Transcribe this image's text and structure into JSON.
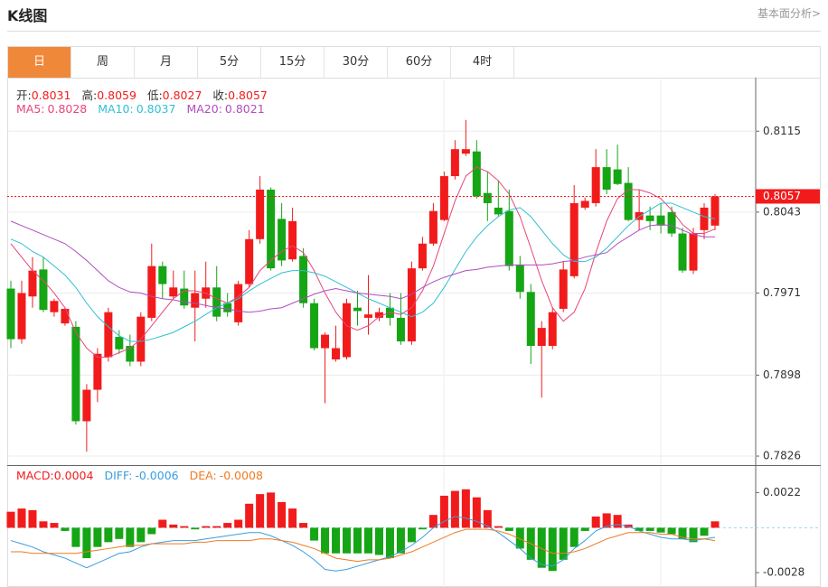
{
  "header": {
    "title": "K线图",
    "link": "基本面分析>"
  },
  "tabs": {
    "items": [
      "日",
      "周",
      "月",
      "5分",
      "15分",
      "30分",
      "60分",
      "4时"
    ],
    "active": 0
  },
  "chart_data": [
    {
      "type": "candlestick",
      "up_color": "#f21b1b",
      "down_color": "#15a515",
      "ylim": [
        0.7818,
        0.8161
      ],
      "yticks": [
        0.8115,
        0.8043,
        0.7971,
        0.7898,
        0.7826
      ],
      "grid": true,
      "last_price": 0.8057,
      "last_price_color": "#f21b1b",
      "info": [
        {
          "label": "开:",
          "value": 0.8031
        },
        {
          "label": "高:",
          "value": 0.8059
        },
        {
          "label": "低:",
          "value": 0.8027
        },
        {
          "label": "收:",
          "value": 0.8057
        }
      ],
      "open": [
        0.7975,
        0.793,
        0.7968,
        0.7992,
        0.7954,
        0.7944,
        0.7941,
        0.7857,
        0.7885,
        0.7914,
        0.7932,
        0.7924,
        0.791,
        0.7949,
        0.7995,
        0.7968,
        0.7975,
        0.7958,
        0.7966,
        0.7976,
        0.7962,
        0.7945,
        0.7979,
        0.8019,
        0.8063,
        0.8037,
        0.8001,
        0.8004,
        0.7962,
        0.7922,
        0.7912,
        0.7914,
        0.7958,
        0.7949,
        0.7949,
        0.7958,
        0.7949,
        0.7928,
        0.7993,
        0.8015,
        0.8036,
        0.8075,
        0.8095,
        0.8097,
        0.806,
        0.8047,
        0.8044,
        0.7996,
        0.7972,
        0.7924,
        0.7924,
        0.7957,
        0.7986,
        0.8047,
        0.8051,
        0.8083,
        0.8081,
        0.8069,
        0.8036,
        0.804,
        0.804,
        0.8043,
        0.8024,
        0.7991,
        0.8027,
        0.8031
      ],
      "high": [
        0.7982,
        0.7982,
        0.8003,
        0.8003,
        0.7966,
        0.7958,
        0.7946,
        0.789,
        0.7922,
        0.7958,
        0.7938,
        0.7934,
        0.7954,
        0.8015,
        0.7999,
        0.7991,
        0.7991,
        0.7991,
        0.7999,
        0.7995,
        0.7971,
        0.7982,
        0.8027,
        0.8075,
        0.8065,
        0.8051,
        0.8047,
        0.8011,
        0.7966,
        0.7936,
        0.7942,
        0.7966,
        0.7973,
        0.7987,
        0.7958,
        0.7971,
        0.7971,
        0.7999,
        0.8021,
        0.8051,
        0.8079,
        0.8107,
        0.8125,
        0.8107,
        0.8079,
        0.8071,
        0.8063,
        0.8004,
        0.7979,
        0.7946,
        0.7958,
        0.7999,
        0.8067,
        0.8056,
        0.8099,
        0.8099,
        0.8103,
        0.8083,
        0.8063,
        0.8048,
        0.8051,
        0.8048,
        0.8029,
        0.8029,
        0.8051,
        0.8059
      ],
      "low": [
        0.7922,
        0.7926,
        0.7958,
        0.7954,
        0.795,
        0.7942,
        0.7854,
        0.783,
        0.7874,
        0.791,
        0.7917,
        0.7906,
        0.7906,
        0.7946,
        0.7966,
        0.7966,
        0.7957,
        0.7928,
        0.7958,
        0.7946,
        0.795,
        0.7942,
        0.7976,
        0.8015,
        0.7991,
        0.7995,
        0.7999,
        0.7958,
        0.792,
        0.7873,
        0.791,
        0.7912,
        0.7942,
        0.7934,
        0.7946,
        0.7942,
        0.7925,
        0.7925,
        0.7991,
        0.8013,
        0.8035,
        0.8072,
        0.8093,
        0.8055,
        0.8035,
        0.8039,
        0.7991,
        0.7966,
        0.7908,
        0.7878,
        0.7921,
        0.7954,
        0.7984,
        0.8045,
        0.8048,
        0.8059,
        0.8067,
        0.8035,
        0.8027,
        0.8027,
        0.8024,
        0.8021,
        0.7989,
        0.7988,
        0.8019,
        0.8027
      ],
      "close": [
        0.793,
        0.7971,
        0.7991,
        0.7956,
        0.7964,
        0.7957,
        0.7857,
        0.7885,
        0.7917,
        0.7954,
        0.7921,
        0.791,
        0.795,
        0.7995,
        0.7979,
        0.7976,
        0.796,
        0.7971,
        0.7976,
        0.795,
        0.7954,
        0.7979,
        0.8019,
        0.8063,
        0.7993,
        0.8,
        0.8035,
        0.7962,
        0.7922,
        0.7934,
        0.7922,
        0.7962,
        0.7955,
        0.7952,
        0.7954,
        0.7949,
        0.7928,
        0.7993,
        0.8015,
        0.8044,
        0.8075,
        0.8099,
        0.8099,
        0.8057,
        0.8051,
        0.8041,
        0.7995,
        0.7972,
        0.7924,
        0.794,
        0.7954,
        0.7992,
        0.8051,
        0.8053,
        0.8083,
        0.8063,
        0.8068,
        0.8036,
        0.8043,
        0.8035,
        0.8031,
        0.8024,
        0.7991,
        0.8024,
        0.8047,
        0.8057
      ],
      "series": [
        {
          "label": "MA5:",
          "value": 0.8028,
          "color": "#e8457a",
          "values": [
            0.8015,
            0.8003,
            0.7991,
            0.7982,
            0.7971,
            0.7958,
            0.7936,
            0.7922,
            0.7914,
            0.7914,
            0.7918,
            0.7922,
            0.793,
            0.7942,
            0.7954,
            0.7966,
            0.7973,
            0.7973,
            0.7971,
            0.7966,
            0.7962,
            0.7968,
            0.7976,
            0.7991,
            0.8,
            0.8008,
            0.8013,
            0.8007,
            0.7991,
            0.7971,
            0.7954,
            0.7942,
            0.7938,
            0.7942,
            0.795,
            0.7954,
            0.7952,
            0.7958,
            0.7973,
            0.7995,
            0.8024,
            0.8053,
            0.8075,
            0.8083,
            0.8079,
            0.8071,
            0.8059,
            0.8039,
            0.8011,
            0.7982,
            0.7958,
            0.7946,
            0.7954,
            0.7975,
            0.8007,
            0.8035,
            0.8055,
            0.8063,
            0.8063,
            0.806,
            0.8055,
            0.8045,
            0.8032,
            0.8024,
            0.8024,
            0.8028
          ]
        },
        {
          "label": "MA10:",
          "value": 0.8037,
          "color": "#2fc0d4",
          "values": [
            0.8019,
            0.8015,
            0.8008,
            0.8003,
            0.7995,
            0.7987,
            0.7976,
            0.7962,
            0.795,
            0.7941,
            0.7933,
            0.7928,
            0.7928,
            0.793,
            0.7933,
            0.7936,
            0.7941,
            0.7946,
            0.7952,
            0.7958,
            0.7962,
            0.7966,
            0.7973,
            0.7979,
            0.7984,
            0.7989,
            0.7991,
            0.7991,
            0.7989,
            0.7986,
            0.7981,
            0.7976,
            0.7971,
            0.7966,
            0.7962,
            0.7958,
            0.7954,
            0.795,
            0.7954,
            0.7962,
            0.7976,
            0.7992,
            0.8008,
            0.8021,
            0.8031,
            0.8039,
            0.8045,
            0.8047,
            0.8039,
            0.8027,
            0.8015,
            0.8005,
            0.7999,
            0.7999,
            0.8003,
            0.8011,
            0.8021,
            0.8031,
            0.8039,
            0.8045,
            0.8051,
            0.8051,
            0.8047,
            0.8043,
            0.8039,
            0.8037
          ]
        },
        {
          "label": "MA20:",
          "value": 0.8021,
          "color": "#b04dbf",
          "values": [
            0.8035,
            0.8031,
            0.8027,
            0.8023,
            0.8019,
            0.8015,
            0.8008,
            0.8,
            0.7991,
            0.7982,
            0.7976,
            0.7972,
            0.7971,
            0.7968,
            0.7966,
            0.7965,
            0.7963,
            0.7962,
            0.796,
            0.7958,
            0.7957,
            0.7955,
            0.7954,
            0.7955,
            0.7957,
            0.7958,
            0.7962,
            0.7966,
            0.797,
            0.7973,
            0.7975,
            0.7973,
            0.7971,
            0.797,
            0.7969,
            0.7968,
            0.7966,
            0.797,
            0.7976,
            0.7981,
            0.7985,
            0.7988,
            0.7991,
            0.7992,
            0.7994,
            0.7995,
            0.7996,
            0.7996,
            0.7996,
            0.7996,
            0.7997,
            0.7999,
            0.8,
            0.8003,
            0.8005,
            0.8007,
            0.8015,
            0.8021,
            0.8027,
            0.8031,
            0.8032,
            0.8031,
            0.8027,
            0.8023,
            0.8021,
            0.8021
          ]
        }
      ]
    },
    {
      "type": "macd",
      "up_color": "#f21b1b",
      "down_color": "#15a515",
      "ylim": [
        -0.0037,
        0.0038
      ],
      "yticks": [
        0.0022,
        -0.0028
      ],
      "label": "MACD:",
      "value": 0.0004,
      "color": "#f21b1b",
      "values": [
        0.001,
        0.0012,
        0.0011,
        0.0004,
        0.0003,
        -0.0002,
        -0.0012,
        -0.0019,
        -0.0012,
        -0.0009,
        -0.0007,
        -0.0012,
        -0.0009,
        -0.0004,
        0.0005,
        0.0002,
        0.0001,
        -0.0001,
        0.0001,
        0.0001,
        0.0003,
        0.0005,
        0.0015,
        0.0021,
        0.0022,
        0.0016,
        0.0012,
        0.0003,
        -0.0008,
        -0.0016,
        -0.0016,
        -0.0016,
        -0.0016,
        -0.0016,
        -0.0017,
        -0.0019,
        -0.0016,
        -0.0009,
        -0.0001,
        0.0008,
        0.002,
        0.0023,
        0.0024,
        0.0019,
        0.0011,
        0.0001,
        -0.0002,
        -0.0013,
        -0.002,
        -0.0025,
        -0.0027,
        -0.002,
        -0.0012,
        -0.0002,
        0.0007,
        0.0009,
        0.0008,
        0.0002,
        -0.0002,
        -0.0002,
        -0.0003,
        -0.0004,
        -0.0007,
        -0.0009,
        -0.0005,
        0.0004
      ],
      "series": [
        {
          "label": "DIFF:",
          "value": -0.0006,
          "color": "#3a9de0",
          "values": [
            -0.0008,
            -0.001,
            -0.0012,
            -0.0015,
            -0.0017,
            -0.0019,
            -0.0022,
            -0.0025,
            -0.0022,
            -0.0019,
            -0.0016,
            -0.0015,
            -0.0012,
            -0.001,
            -0.0009,
            -0.0008,
            -0.0008,
            -0.0008,
            -0.0007,
            -0.0006,
            -0.0005,
            -0.0004,
            -0.0003,
            -0.0003,
            -0.0005,
            -0.0008,
            -0.0011,
            -0.0015,
            -0.002,
            -0.0026,
            -0.0027,
            -0.0026,
            -0.0024,
            -0.0022,
            -0.002,
            -0.0018,
            -0.0015,
            -0.0011,
            -0.0006,
            0,
            0.0004,
            0.0007,
            0.0006,
            0.0004,
            0.0001,
            -0.0003,
            -0.0008,
            -0.0013,
            -0.0019,
            -0.0023,
            -0.0024,
            -0.002,
            -0.0013,
            -0.0008,
            -0.0002,
            0.0001,
            0.0002,
            0.0001,
            -0.0002,
            -0.0004,
            -0.0006,
            -0.0007,
            -0.0007,
            -0.0008,
            -0.0007,
            -0.0006
          ]
        },
        {
          "label": "DEA:",
          "value": -0.0008,
          "color": "#f07a22",
          "values": [
            -0.0015,
            -0.0015,
            -0.0016,
            -0.0016,
            -0.0016,
            -0.0016,
            -0.0016,
            -0.0015,
            -0.0014,
            -0.0013,
            -0.0012,
            -0.0011,
            -0.0011,
            -0.001,
            -0.001,
            -0.001,
            -0.001,
            -0.0009,
            -0.0009,
            -0.0008,
            -0.0008,
            -0.0008,
            -0.0008,
            -0.0007,
            -0.0007,
            -0.0008,
            -0.0009,
            -0.0011,
            -0.0013,
            -0.0016,
            -0.0019,
            -0.002,
            -0.0021,
            -0.002,
            -0.002,
            -0.0019,
            -0.0017,
            -0.0015,
            -0.0012,
            -0.0009,
            -0.0006,
            -0.0003,
            -0.0001,
            -0.0001,
            -0.0001,
            -0.0002,
            -0.0004,
            -0.0007,
            -0.001,
            -0.0013,
            -0.0016,
            -0.0016,
            -0.0015,
            -0.0013,
            -0.001,
            -0.0007,
            -0.0005,
            -0.0003,
            -0.0003,
            -0.0003,
            -0.0004,
            -0.0004,
            -0.0006,
            -0.0007,
            -0.0007,
            -0.0008
          ]
        }
      ]
    }
  ]
}
